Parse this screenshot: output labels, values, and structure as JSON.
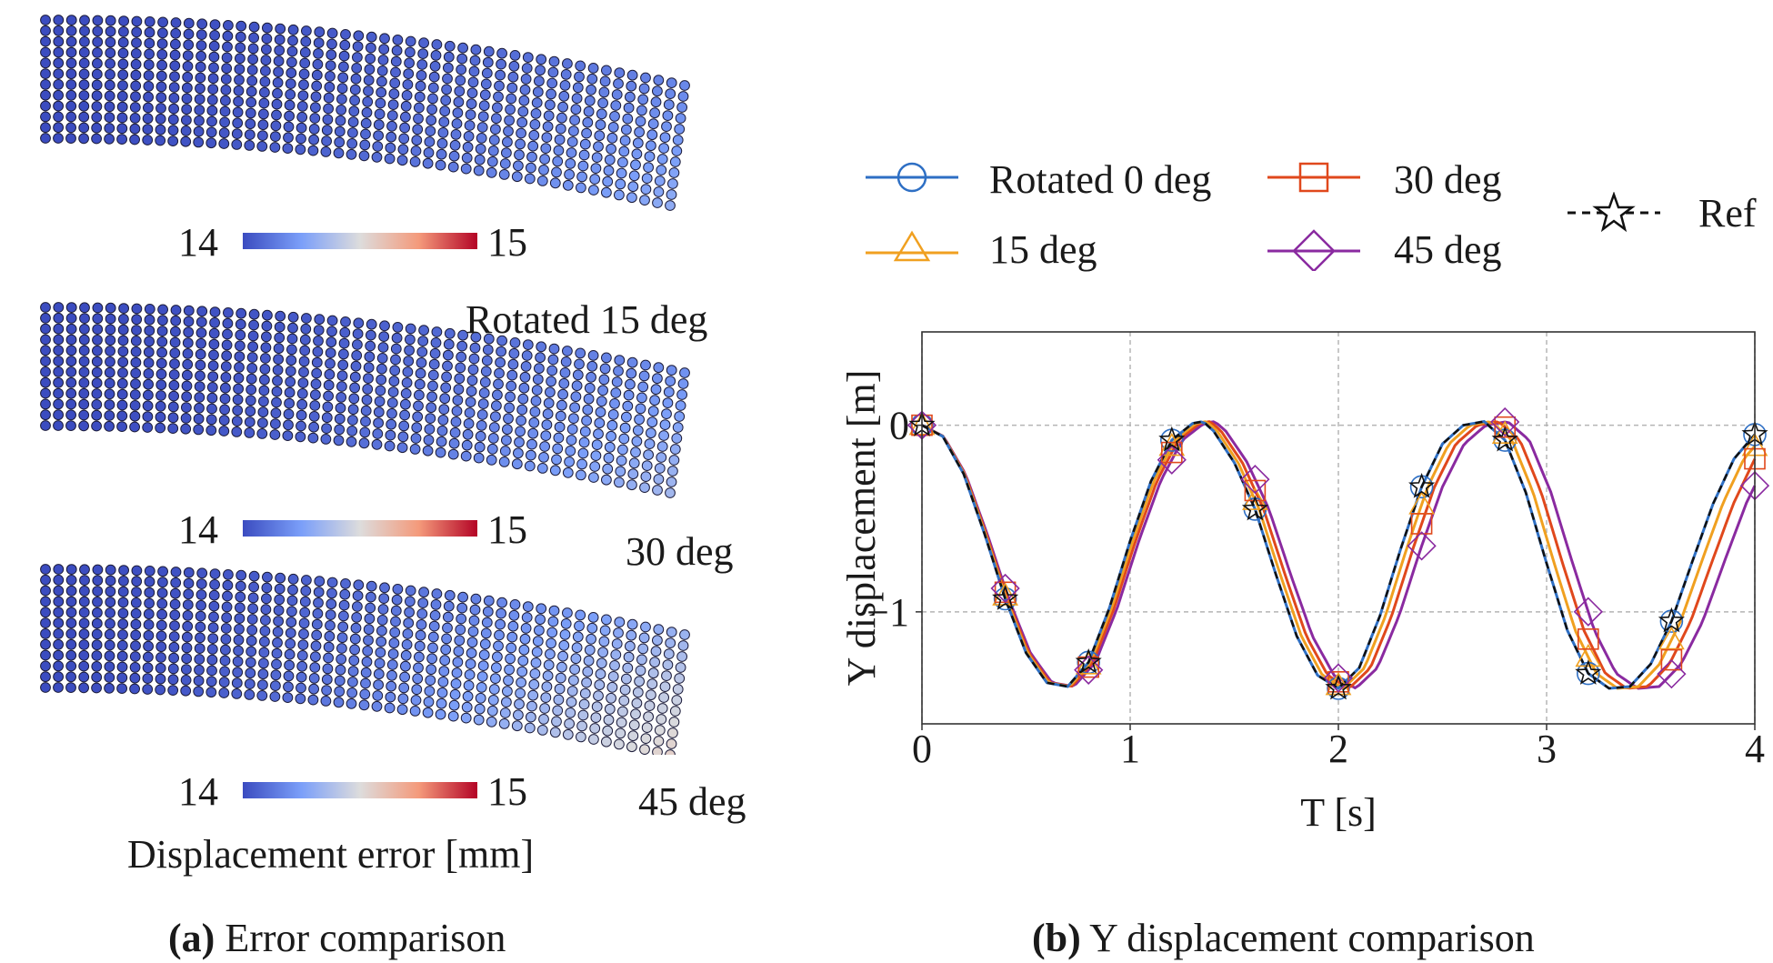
{
  "panel_a": {
    "caption_label": "(a)",
    "caption_text": " Error comparison",
    "colorbar_label": "Displacement error [mm]",
    "colorbar_min": "14",
    "colorbar_max": "15",
    "colormap": [
      "#3b4cc0",
      "#7b9ff9",
      "#dddcdc",
      "#f49a7b",
      "#b40426"
    ],
    "beams": [
      {
        "label": "",
        "max_error_fraction": 0.3
      },
      {
        "label": "Rotated 15 deg",
        "max_error_fraction": 0.35
      },
      {
        "label": "30 deg",
        "max_error_fraction": 0.55
      }
    ],
    "extra_label": "45 deg"
  },
  "panel_b": {
    "caption_label": "(b)",
    "caption_text": " Y displacement comparison",
    "legend": [
      {
        "name": "Rotated 0 deg",
        "color": "#2e6fc4",
        "marker": "circle",
        "dash": "solid"
      },
      {
        "name": "30 deg",
        "color": "#e0481c",
        "marker": "square",
        "dash": "solid"
      },
      {
        "name": "15 deg",
        "color": "#f0a020",
        "marker": "triangle",
        "dash": "solid"
      },
      {
        "name": "45 deg",
        "color": "#8a2aa0",
        "marker": "diamond",
        "dash": "solid"
      },
      {
        "name": "Ref",
        "color": "#111111",
        "marker": "star",
        "dash": "dashed"
      }
    ]
  },
  "chart_data": {
    "type": "line",
    "title": "",
    "xlabel": "T [s]",
    "ylabel": "Y displacement [m]",
    "xlim": [
      0,
      4
    ],
    "ylim": [
      -1.6,
      0.5
    ],
    "xticks": [
      0,
      1,
      2,
      3,
      4
    ],
    "yticks": [
      0,
      -1
    ],
    "xtick_labels": [
      "0",
      "1",
      "2",
      "3",
      "4"
    ],
    "ytick_labels": [
      "0",
      "−1"
    ],
    "grid": true,
    "marker_x": [
      0,
      0.4,
      0.8,
      1.2,
      1.6,
      2.0,
      2.4,
      2.8,
      3.2,
      3.6,
      4.0
    ],
    "series": [
      {
        "name": "Ref",
        "x": [
          0,
          0.1,
          0.2,
          0.3,
          0.4,
          0.5,
          0.6,
          0.7,
          0.8,
          0.9,
          1.0,
          1.1,
          1.2,
          1.3,
          1.35,
          1.4,
          1.5,
          1.6,
          1.7,
          1.8,
          1.9,
          2.0,
          2.1,
          2.2,
          2.3,
          2.4,
          2.5,
          2.6,
          2.7,
          2.8,
          2.9,
          3.0,
          3.1,
          3.2,
          3.3,
          3.4,
          3.5,
          3.6,
          3.7,
          3.8,
          3.9,
          4.0
        ],
        "y": [
          0,
          -0.06,
          -0.26,
          -0.58,
          -0.93,
          -1.22,
          -1.38,
          -1.4,
          -1.27,
          -0.98,
          -0.62,
          -0.3,
          -0.08,
          0.01,
          0.02,
          -0.03,
          -0.2,
          -0.45,
          -0.8,
          -1.13,
          -1.34,
          -1.41,
          -1.3,
          -1.02,
          -0.66,
          -0.33,
          -0.1,
          0.0,
          0.02,
          -0.08,
          -0.36,
          -0.74,
          -1.1,
          -1.33,
          -1.41,
          -1.4,
          -1.28,
          -1.05,
          -0.73,
          -0.42,
          -0.18,
          -0.05
        ]
      },
      {
        "name": "Rotated 0 deg",
        "time_shift": 0.0
      },
      {
        "name": "15 deg",
        "time_shift": 0.012
      },
      {
        "name": "30 deg",
        "time_shift": 0.025
      },
      {
        "name": "45 deg",
        "time_shift": 0.04
      }
    ]
  }
}
